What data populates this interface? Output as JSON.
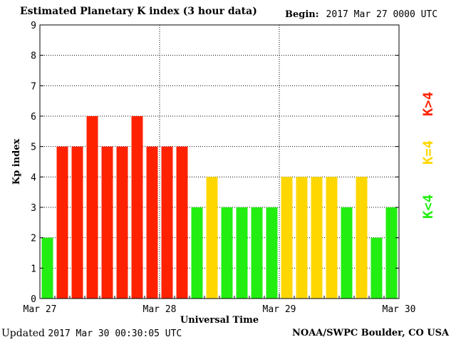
{
  "header": {
    "title": "Estimated Planetary K index (3 hour data)",
    "begin_label": "Begin:",
    "begin_date": "2017 Mar 27 0000 UTC"
  },
  "footer": {
    "updated_label": "Updated",
    "updated_date": "2017 Mar 30 00:30:05 UTC",
    "credit": "NOAA/SWPC Boulder, CO USA"
  },
  "legend": {
    "items": [
      {
        "label": "K<4",
        "color": "#22ee11"
      },
      {
        "label": "K=4",
        "color": "#ffd700"
      },
      {
        "label": "K>4",
        "color": "#ff2200"
      }
    ]
  },
  "chart_data": {
    "type": "bar",
    "title": "Estimated Planetary K index (3 hour data)",
    "xlabel": "Universal Time",
    "ylabel": "Kp index",
    "ylim": [
      0,
      9
    ],
    "y_ticks": [
      "0",
      "1",
      "2",
      "3",
      "4",
      "5",
      "6",
      "7",
      "8",
      "9"
    ],
    "x_tick_labels": [
      "Mar 27",
      "Mar 28",
      "Mar 29",
      "Mar 30"
    ],
    "interval_hours": 3,
    "grid": true,
    "legend_position": "right",
    "colors": {
      "below": "#22ee11",
      "equal": "#ffd700",
      "above": "#ff2200"
    },
    "values": [
      2,
      5,
      5,
      6,
      5,
      5,
      6,
      5,
      5,
      5,
      3,
      4,
      3,
      3,
      3,
      3,
      4,
      4,
      4,
      4,
      3,
      4,
      2,
      3
    ]
  }
}
